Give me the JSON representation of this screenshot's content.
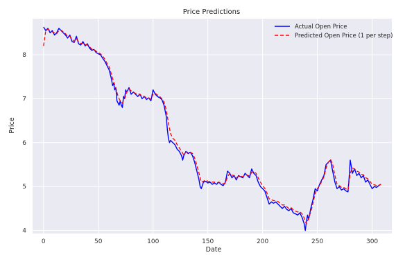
{
  "chart_data": {
    "type": "line",
    "title": "Price Predictions",
    "xlabel": "Date",
    "ylabel": "Price",
    "xlim": [
      -10,
      318
    ],
    "ylim": [
      3.93,
      8.82
    ],
    "xticks": [
      0,
      50,
      100,
      150,
      200,
      250,
      300
    ],
    "yticks": [
      4,
      5,
      6,
      7,
      8
    ],
    "grid": true,
    "legend_position": "top-right",
    "background_color": "#eaeaf2",
    "series": [
      {
        "name": "Actual  Open Price",
        "color": "#0000ff",
        "style": "solid",
        "points": [
          [
            0,
            8.63
          ],
          [
            2,
            8.55
          ],
          [
            4,
            8.6
          ],
          [
            6,
            8.5
          ],
          [
            8,
            8.55
          ],
          [
            10,
            8.45
          ],
          [
            12,
            8.5
          ],
          [
            14,
            8.6
          ],
          [
            16,
            8.55
          ],
          [
            18,
            8.5
          ],
          [
            20,
            8.45
          ],
          [
            22,
            8.38
          ],
          [
            24,
            8.45
          ],
          [
            26,
            8.3
          ],
          [
            28,
            8.28
          ],
          [
            30,
            8.42
          ],
          [
            32,
            8.25
          ],
          [
            34,
            8.22
          ],
          [
            36,
            8.3
          ],
          [
            38,
            8.2
          ],
          [
            40,
            8.25
          ],
          [
            42,
            8.15
          ],
          [
            44,
            8.1
          ],
          [
            46,
            8.12
          ],
          [
            48,
            8.05
          ],
          [
            50,
            8.02
          ],
          [
            52,
            8.0
          ],
          [
            54,
            7.92
          ],
          [
            56,
            7.85
          ],
          [
            58,
            7.75
          ],
          [
            60,
            7.65
          ],
          [
            62,
            7.45
          ],
          [
            63,
            7.3
          ],
          [
            64,
            7.35
          ],
          [
            65,
            7.2
          ],
          [
            66,
            7.25
          ],
          [
            67,
            6.95
          ],
          [
            68,
            6.9
          ],
          [
            69,
            6.85
          ],
          [
            70,
            6.95
          ],
          [
            71,
            6.85
          ],
          [
            72,
            6.8
          ],
          [
            73,
            7.05
          ],
          [
            74,
            7.0
          ],
          [
            75,
            7.2
          ],
          [
            76,
            7.15
          ],
          [
            78,
            7.25
          ],
          [
            80,
            7.1
          ],
          [
            82,
            7.15
          ],
          [
            84,
            7.1
          ],
          [
            86,
            7.05
          ],
          [
            88,
            7.1
          ],
          [
            90,
            7.0
          ],
          [
            92,
            7.05
          ],
          [
            94,
            6.98
          ],
          [
            96,
            7.02
          ],
          [
            98,
            6.95
          ],
          [
            100,
            7.2
          ],
          [
            102,
            7.1
          ],
          [
            104,
            7.05
          ],
          [
            106,
            7.02
          ],
          [
            108,
            6.98
          ],
          [
            110,
            6.85
          ],
          [
            112,
            6.6
          ],
          [
            113,
            6.3
          ],
          [
            114,
            6.1
          ],
          [
            115,
            6.0
          ],
          [
            116,
            6.05
          ],
          [
            118,
            6.0
          ],
          [
            120,
            5.95
          ],
          [
            122,
            5.85
          ],
          [
            124,
            5.8
          ],
          [
            126,
            5.7
          ],
          [
            127,
            5.6
          ],
          [
            128,
            5.7
          ],
          [
            130,
            5.8
          ],
          [
            132,
            5.75
          ],
          [
            134,
            5.78
          ],
          [
            136,
            5.7
          ],
          [
            138,
            5.55
          ],
          [
            140,
            5.35
          ],
          [
            142,
            5.15
          ],
          [
            143,
            5.0
          ],
          [
            144,
            4.95
          ],
          [
            146,
            5.1
          ],
          [
            148,
            5.12
          ],
          [
            150,
            5.08
          ],
          [
            152,
            5.1
          ],
          [
            154,
            5.05
          ],
          [
            156,
            5.08
          ],
          [
            158,
            5.05
          ],
          [
            160,
            5.1
          ],
          [
            162,
            5.05
          ],
          [
            164,
            5.02
          ],
          [
            166,
            5.1
          ],
          [
            168,
            5.35
          ],
          [
            170,
            5.3
          ],
          [
            172,
            5.2
          ],
          [
            174,
            5.25
          ],
          [
            176,
            5.15
          ],
          [
            178,
            5.25
          ],
          [
            180,
            5.22
          ],
          [
            182,
            5.2
          ],
          [
            184,
            5.3
          ],
          [
            186,
            5.25
          ],
          [
            188,
            5.2
          ],
          [
            190,
            5.4
          ],
          [
            192,
            5.3
          ],
          [
            194,
            5.25
          ],
          [
            196,
            5.1
          ],
          [
            198,
            5.0
          ],
          [
            200,
            4.95
          ],
          [
            202,
            4.9
          ],
          [
            204,
            4.75
          ],
          [
            206,
            4.6
          ],
          [
            208,
            4.65
          ],
          [
            210,
            4.62
          ],
          [
            212,
            4.65
          ],
          [
            214,
            4.6
          ],
          [
            216,
            4.55
          ],
          [
            218,
            4.5
          ],
          [
            220,
            4.55
          ],
          [
            222,
            4.48
          ],
          [
            224,
            4.45
          ],
          [
            226,
            4.5
          ],
          [
            228,
            4.4
          ],
          [
            230,
            4.38
          ],
          [
            232,
            4.35
          ],
          [
            234,
            4.4
          ],
          [
            236,
            4.3
          ],
          [
            238,
            4.15
          ],
          [
            239,
            4.0
          ],
          [
            240,
            4.2
          ],
          [
            241,
            4.35
          ],
          [
            242,
            4.25
          ],
          [
            244,
            4.5
          ],
          [
            246,
            4.7
          ],
          [
            248,
            4.95
          ],
          [
            250,
            4.9
          ],
          [
            252,
            5.05
          ],
          [
            254,
            5.15
          ],
          [
            256,
            5.25
          ],
          [
            258,
            5.5
          ],
          [
            260,
            5.55
          ],
          [
            262,
            5.6
          ],
          [
            264,
            5.35
          ],
          [
            266,
            5.1
          ],
          [
            268,
            4.95
          ],
          [
            270,
            5.0
          ],
          [
            272,
            4.92
          ],
          [
            274,
            4.95
          ],
          [
            276,
            4.9
          ],
          [
            278,
            4.88
          ],
          [
            279,
            5.2
          ],
          [
            280,
            5.6
          ],
          [
            281,
            5.45
          ],
          [
            282,
            5.3
          ],
          [
            284,
            5.4
          ],
          [
            286,
            5.25
          ],
          [
            288,
            5.3
          ],
          [
            290,
            5.2
          ],
          [
            292,
            5.25
          ],
          [
            294,
            5.1
          ],
          [
            296,
            5.15
          ],
          [
            298,
            5.05
          ],
          [
            300,
            4.95
          ],
          [
            302,
            5.0
          ],
          [
            304,
            4.98
          ],
          [
            306,
            5.02
          ],
          [
            308,
            5.05
          ]
        ]
      },
      {
        "name": "Predicted Open Price (1 per step)",
        "color": "#ff0000",
        "style": "dashed",
        "points": [
          [
            0,
            8.2
          ],
          [
            2,
            8.55
          ],
          [
            4,
            8.58
          ],
          [
            6,
            8.55
          ],
          [
            8,
            8.52
          ],
          [
            10,
            8.5
          ],
          [
            12,
            8.48
          ],
          [
            14,
            8.55
          ],
          [
            16,
            8.56
          ],
          [
            18,
            8.52
          ],
          [
            20,
            8.48
          ],
          [
            22,
            8.42
          ],
          [
            24,
            8.42
          ],
          [
            26,
            8.36
          ],
          [
            28,
            8.3
          ],
          [
            30,
            8.36
          ],
          [
            32,
            8.3
          ],
          [
            34,
            8.25
          ],
          [
            36,
            8.26
          ],
          [
            38,
            8.23
          ],
          [
            40,
            8.22
          ],
          [
            42,
            8.18
          ],
          [
            44,
            8.13
          ],
          [
            46,
            8.12
          ],
          [
            48,
            8.08
          ],
          [
            50,
            8.05
          ],
          [
            52,
            8.02
          ],
          [
            54,
            7.97
          ],
          [
            56,
            7.9
          ],
          [
            58,
            7.8
          ],
          [
            60,
            7.72
          ],
          [
            62,
            7.55
          ],
          [
            64,
            7.38
          ],
          [
            66,
            7.25
          ],
          [
            68,
            7.05
          ],
          [
            70,
            6.95
          ],
          [
            72,
            6.9
          ],
          [
            74,
            7.0
          ],
          [
            76,
            7.15
          ],
          [
            78,
            7.22
          ],
          [
            80,
            7.18
          ],
          [
            82,
            7.15
          ],
          [
            84,
            7.12
          ],
          [
            86,
            7.1
          ],
          [
            88,
            7.1
          ],
          [
            90,
            7.05
          ],
          [
            92,
            7.05
          ],
          [
            94,
            7.02
          ],
          [
            96,
            7.02
          ],
          [
            98,
            6.98
          ],
          [
            100,
            7.1
          ],
          [
            102,
            7.12
          ],
          [
            104,
            7.08
          ],
          [
            106,
            7.05
          ],
          [
            108,
            7.0
          ],
          [
            110,
            6.92
          ],
          [
            112,
            6.75
          ],
          [
            114,
            6.45
          ],
          [
            116,
            6.2
          ],
          [
            118,
            6.1
          ],
          [
            120,
            6.05
          ],
          [
            122,
            5.95
          ],
          [
            124,
            5.88
          ],
          [
            126,
            5.8
          ],
          [
            128,
            5.72
          ],
          [
            130,
            5.78
          ],
          [
            132,
            5.78
          ],
          [
            134,
            5.78
          ],
          [
            136,
            5.75
          ],
          [
            138,
            5.65
          ],
          [
            140,
            5.48
          ],
          [
            142,
            5.3
          ],
          [
            144,
            5.1
          ],
          [
            146,
            5.12
          ],
          [
            148,
            5.15
          ],
          [
            150,
            5.12
          ],
          [
            152,
            5.12
          ],
          [
            154,
            5.1
          ],
          [
            156,
            5.1
          ],
          [
            158,
            5.08
          ],
          [
            160,
            5.1
          ],
          [
            162,
            5.08
          ],
          [
            164,
            5.06
          ],
          [
            166,
            5.08
          ],
          [
            168,
            5.22
          ],
          [
            170,
            5.3
          ],
          [
            172,
            5.26
          ],
          [
            174,
            5.25
          ],
          [
            176,
            5.2
          ],
          [
            178,
            5.23
          ],
          [
            180,
            5.24
          ],
          [
            182,
            5.22
          ],
          [
            184,
            5.26
          ],
          [
            186,
            5.26
          ],
          [
            188,
            5.24
          ],
          [
            190,
            5.32
          ],
          [
            192,
            5.34
          ],
          [
            194,
            5.3
          ],
          [
            196,
            5.2
          ],
          [
            198,
            5.1
          ],
          [
            200,
            5.02
          ],
          [
            202,
            4.96
          ],
          [
            204,
            4.85
          ],
          [
            206,
            4.72
          ],
          [
            208,
            4.7
          ],
          [
            210,
            4.68
          ],
          [
            212,
            4.68
          ],
          [
            214,
            4.66
          ],
          [
            216,
            4.62
          ],
          [
            218,
            4.58
          ],
          [
            220,
            4.58
          ],
          [
            222,
            4.54
          ],
          [
            224,
            4.5
          ],
          [
            226,
            4.52
          ],
          [
            228,
            4.47
          ],
          [
            230,
            4.44
          ],
          [
            232,
            4.42
          ],
          [
            234,
            4.43
          ],
          [
            236,
            4.38
          ],
          [
            238,
            4.28
          ],
          [
            240,
            4.15
          ],
          [
            242,
            4.28
          ],
          [
            244,
            4.42
          ],
          [
            246,
            4.62
          ],
          [
            248,
            4.85
          ],
          [
            250,
            4.95
          ],
          [
            252,
            5.02
          ],
          [
            254,
            5.12
          ],
          [
            256,
            5.22
          ],
          [
            258,
            5.42
          ],
          [
            260,
            5.55
          ],
          [
            262,
            5.62
          ],
          [
            264,
            5.5
          ],
          [
            266,
            5.25
          ],
          [
            268,
            5.05
          ],
          [
            270,
            5.02
          ],
          [
            272,
            4.98
          ],
          [
            274,
            4.98
          ],
          [
            276,
            4.95
          ],
          [
            278,
            4.92
          ],
          [
            280,
            5.3
          ],
          [
            282,
            5.42
          ],
          [
            284,
            5.4
          ],
          [
            286,
            5.35
          ],
          [
            288,
            5.33
          ],
          [
            290,
            5.28
          ],
          [
            292,
            5.27
          ],
          [
            294,
            5.2
          ],
          [
            296,
            5.18
          ],
          [
            298,
            5.12
          ],
          [
            300,
            5.05
          ],
          [
            302,
            5.04
          ],
          [
            304,
            5.02
          ],
          [
            306,
            5.03
          ],
          [
            308,
            5.05
          ]
        ]
      }
    ]
  }
}
